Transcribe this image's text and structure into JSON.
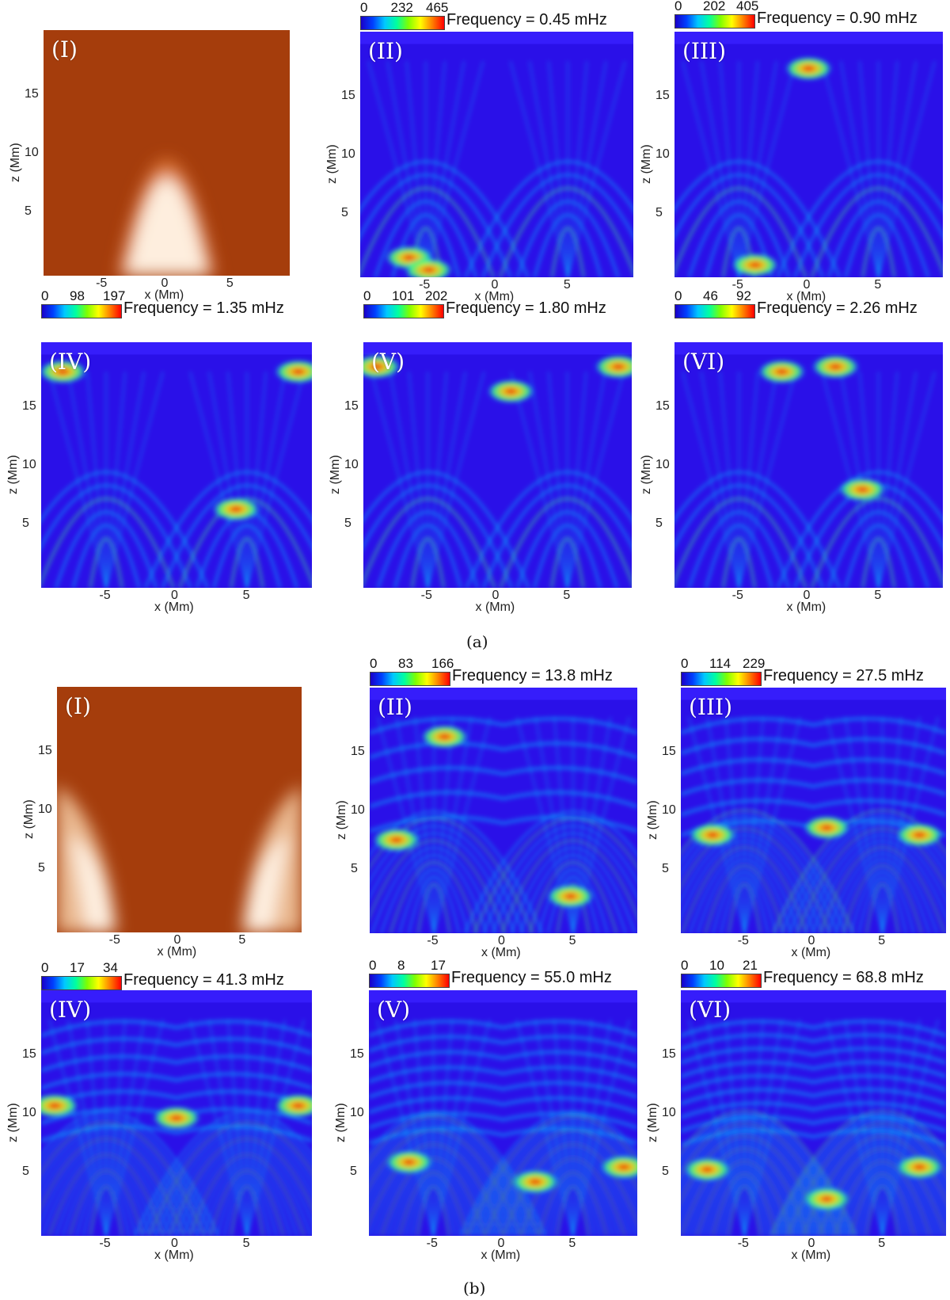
{
  "figure": {
    "caption_a": "(a)",
    "caption_b": "(b)",
    "x_axis_label": "x (Mm)",
    "z_axis_label": "z (Mm)",
    "x_ticks": [
      "-5",
      "0",
      "5"
    ],
    "z_ticks": [
      "15",
      "10",
      "5"
    ]
  },
  "groups": [
    {
      "id": "a",
      "panels": [
        {
          "roman": "(I)",
          "kind": "field",
          "freq": "",
          "cbar": [
            "",
            "",
            ""
          ]
        },
        {
          "roman": "(II)",
          "kind": "map",
          "freq": "Frequency = 0.45 mHz",
          "cbar": [
            "0",
            "232",
            "465"
          ]
        },
        {
          "roman": "(III)",
          "kind": "map",
          "freq": "Frequency = 0.90 mHz",
          "cbar": [
            "0",
            "202",
            "405"
          ]
        },
        {
          "roman": "(IV)",
          "kind": "map",
          "freq": "Frequency = 1.35 mHz",
          "cbar": [
            "0",
            "98",
            "197"
          ]
        },
        {
          "roman": "(V)",
          "kind": "map",
          "freq": "Frequency = 1.80 mHz",
          "cbar": [
            "0",
            "101",
            "202"
          ]
        },
        {
          "roman": "(VI)",
          "kind": "map",
          "freq": "Frequency = 2.26 mHz",
          "cbar": [
            "0",
            "46",
            "92"
          ]
        }
      ]
    },
    {
      "id": "b",
      "panels": [
        {
          "roman": "(I)",
          "kind": "field",
          "freq": "",
          "cbar": [
            "",
            "",
            ""
          ]
        },
        {
          "roman": "(II)",
          "kind": "map",
          "freq": "Frequency = 13.8 mHz",
          "cbar": [
            "0",
            "83",
            "166"
          ]
        },
        {
          "roman": "(III)",
          "kind": "map",
          "freq": "Frequency = 27.5 mHz",
          "cbar": [
            "0",
            "114",
            "229"
          ]
        },
        {
          "roman": "(IV)",
          "kind": "map",
          "freq": "Frequency = 41.3 mHz",
          "cbar": [
            "0",
            "17",
            "34"
          ]
        },
        {
          "roman": "(V)",
          "kind": "map",
          "freq": "Frequency = 55.0 mHz",
          "cbar": [
            "0",
            "8",
            "17"
          ]
        },
        {
          "roman": "(VI)",
          "kind": "map",
          "freq": "Frequency = 68.8 mHz",
          "cbar": [
            "0",
            "10",
            "21"
          ]
        }
      ]
    }
  ],
  "colors": {
    "map_background": "#2a10e8",
    "field_background": "#a53d0c",
    "field_glow": "#fff4e8",
    "arch_cyan": "#00c8ff",
    "arch_green": "#40ff80",
    "hot_yellow": "#ffe000",
    "hot_red": "#ff2000"
  }
}
